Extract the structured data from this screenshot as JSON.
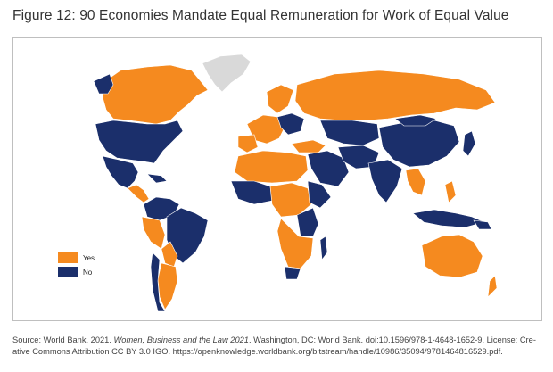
{
  "figure": {
    "title": "Figure 12: 90 Economies Mandate Equal Remuneration for Work of Equal Value"
  },
  "map": {
    "legend": [
      {
        "label": "Yes",
        "color": "#f58a1f"
      },
      {
        "label": "No",
        "color": "#1b2f6b"
      }
    ],
    "colors": {
      "yes": "#f58a1f",
      "no": "#1b2f6b",
      "no_data": "#d9d9d9",
      "border": "#ffffff"
    }
  },
  "source": {
    "prefix": "Source: World Bank. 2021. ",
    "title_italic": "Women, Business and the Law 2021",
    "suffix": ". Washington, DC: World Bank. doi:10.1596/978-1-4648-1652-9. License: Cre-ative Commons Attribution CC BY 3.0 IGO. https://openknowledge.worldbank.org/bitstream/handle/10986/35094/9781464816529.pdf."
  }
}
